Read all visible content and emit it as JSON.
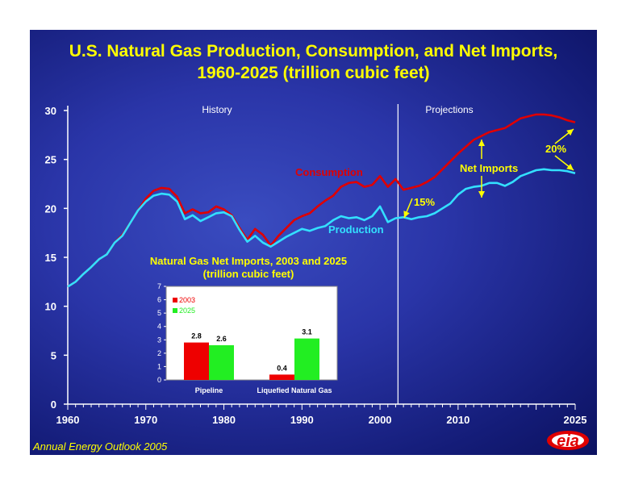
{
  "title_line1": "U.S. Natural Gas Production, Consumption, and Net Imports,",
  "title_line2": "1960-2025 (trillion cubic feet)",
  "footer": "Annual Energy Outlook 2005",
  "logo_text": "eia",
  "colors": {
    "consumption": "#e00000",
    "production": "#33e0ff",
    "label_text": "#ffff00",
    "inset_2003": "#ee0000",
    "inset_2025": "#22ee22"
  },
  "chart_data": [
    {
      "type": "line",
      "title": "U.S. Natural Gas Production, Consumption, and Net Imports, 1960-2025 (trillion cubic feet)",
      "xlim": [
        1960,
        2025
      ],
      "ylim": [
        0,
        30
      ],
      "xticks": [
        "1960",
        "1970",
        "1980",
        "1990",
        "2000",
        "2010",
        "2025"
      ],
      "yticks": [
        "0",
        "5",
        "10",
        "15",
        "20",
        "25",
        "30"
      ],
      "grid": false,
      "history_label": "History",
      "projections_label": "Projections",
      "projection_start": 2002.3,
      "annotations": {
        "net_imports": "Net Imports",
        "pct_2003": "15%",
        "pct_2025": "20%"
      },
      "series": [
        {
          "name": "Consumption",
          "x": [
            1960,
            1961,
            1962,
            1963,
            1964,
            1965,
            1966,
            1967,
            1968,
            1969,
            1970,
            1971,
            1972,
            1973,
            1974,
            1975,
            1976,
            1977,
            1978,
            1979,
            1980,
            1981,
            1982,
            1983,
            1984,
            1985,
            1986,
            1987,
            1988,
            1989,
            1990,
            1991,
            1992,
            1993,
            1994,
            1995,
            1996,
            1997,
            1998,
            1999,
            2000,
            2001,
            2002,
            2003,
            2004,
            2005,
            2006,
            2007,
            2008,
            2009,
            2010,
            2011,
            2012,
            2013,
            2014,
            2015,
            2016,
            2017,
            2018,
            2019,
            2020,
            2021,
            2022,
            2023,
            2024,
            2025
          ],
          "values": [
            12.0,
            12.5,
            13.3,
            14.0,
            14.8,
            15.3,
            16.5,
            17.3,
            18.5,
            19.8,
            21.0,
            21.8,
            22.1,
            22.0,
            21.2,
            19.5,
            19.9,
            19.5,
            19.6,
            20.2,
            19.9,
            19.3,
            18.0,
            16.8,
            17.9,
            17.3,
            16.2,
            17.2,
            18.0,
            18.8,
            19.2,
            19.5,
            20.2,
            20.8,
            21.3,
            22.2,
            22.6,
            22.7,
            22.2,
            22.4,
            23.3,
            22.2,
            23.0,
            21.9,
            22.1,
            22.3,
            22.7,
            23.2,
            24.0,
            24.8,
            25.6,
            26.3,
            27.0,
            27.4,
            27.8,
            28.0,
            28.2,
            28.7,
            29.2,
            29.4,
            29.6,
            29.6,
            29.5,
            29.3,
            29.0,
            28.8
          ]
        },
        {
          "name": "Production",
          "x": [
            1960,
            1961,
            1962,
            1963,
            1964,
            1965,
            1966,
            1967,
            1968,
            1969,
            1970,
            1971,
            1972,
            1973,
            1974,
            1975,
            1976,
            1977,
            1978,
            1979,
            1980,
            1981,
            1982,
            1983,
            1984,
            1985,
            1986,
            1987,
            1988,
            1989,
            1990,
            1991,
            1992,
            1993,
            1994,
            1995,
            1996,
            1997,
            1998,
            1999,
            2000,
            2001,
            2002,
            2003,
            2004,
            2005,
            2006,
            2007,
            2008,
            2009,
            2010,
            2011,
            2012,
            2013,
            2014,
            2015,
            2016,
            2017,
            2018,
            2019,
            2020,
            2021,
            2022,
            2023,
            2024,
            2025
          ],
          "values": [
            12.0,
            12.5,
            13.3,
            14.0,
            14.8,
            15.3,
            16.5,
            17.2,
            18.5,
            19.8,
            20.7,
            21.3,
            21.5,
            21.4,
            20.7,
            18.9,
            19.3,
            18.7,
            19.1,
            19.5,
            19.6,
            19.2,
            17.8,
            16.6,
            17.2,
            16.5,
            16.1,
            16.6,
            17.1,
            17.5,
            17.9,
            17.7,
            18.0,
            18.2,
            18.8,
            19.2,
            19.0,
            19.1,
            18.8,
            19.2,
            20.2,
            18.6,
            19.0,
            19.1,
            18.9,
            19.1,
            19.2,
            19.5,
            20.0,
            20.5,
            21.4,
            22.0,
            22.2,
            22.3,
            22.6,
            22.6,
            22.3,
            22.7,
            23.3,
            23.6,
            23.9,
            24.0,
            23.9,
            23.9,
            23.8,
            23.6
          ]
        }
      ]
    },
    {
      "type": "bar",
      "title": "Natural Gas Net Imports, 2003 and 2025",
      "subtitle": "(trillion cubic feet)",
      "categories": [
        "Pipeline",
        "Liquefied Natural Gas"
      ],
      "ylim": [
        0,
        7
      ],
      "yticks": [
        "0",
        "1",
        "2",
        "3",
        "4",
        "5",
        "6",
        "7"
      ],
      "legend_position": "top-left",
      "series": [
        {
          "name": "2003",
          "values": [
            2.8,
            0.4
          ],
          "labels": [
            "2.8",
            "0.4"
          ]
        },
        {
          "name": "2025",
          "values": [
            2.6,
            3.1
          ],
          "labels": [
            "2.6",
            "3.1"
          ]
        }
      ]
    }
  ]
}
